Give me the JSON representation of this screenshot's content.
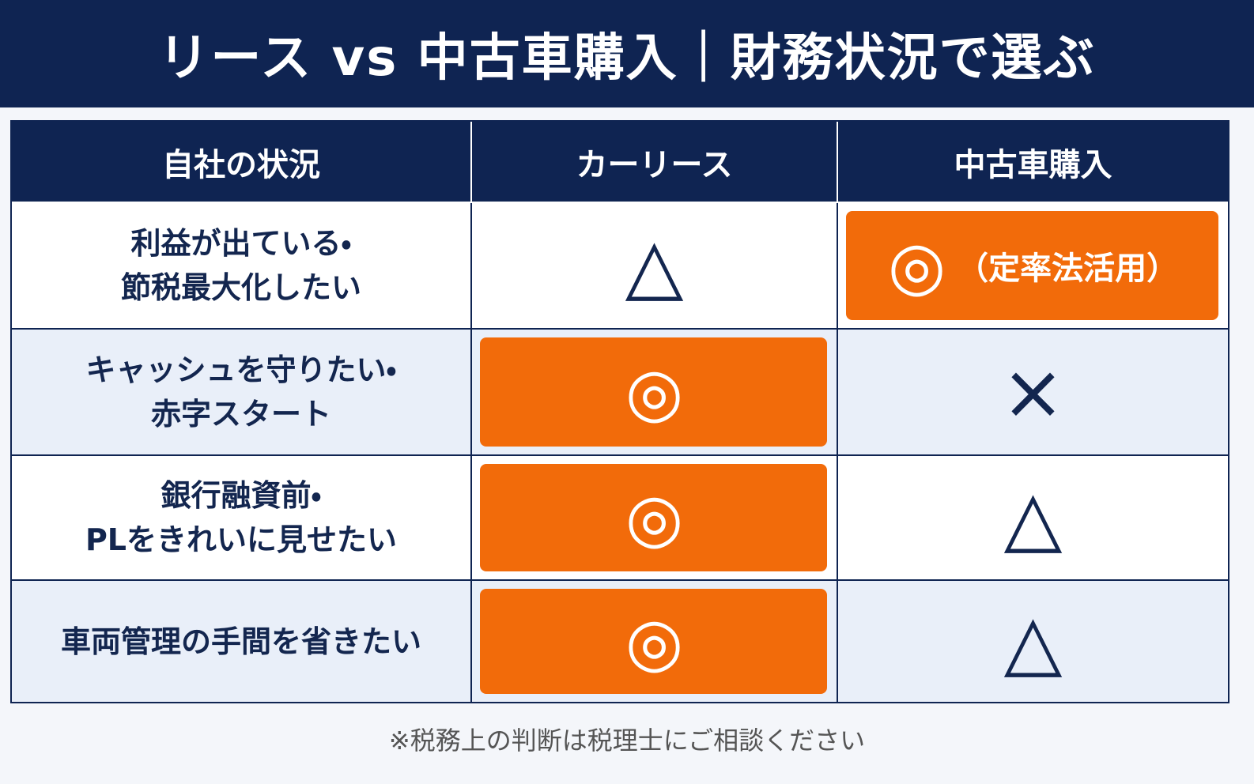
{
  "header": {
    "title": "リース vs 中古車購入｜財務状況で選ぶ"
  },
  "table": {
    "columns": [
      "自社の状況",
      "カーリース",
      "中古車購入"
    ],
    "rows": [
      {
        "situation": [
          "利益が出ている・",
          "節税最大化したい"
        ],
        "lease": {
          "mark": "△",
          "highlight": false
        },
        "used": {
          "mark": "◎",
          "note": "（定率法活用）",
          "highlight": true
        }
      },
      {
        "situation": [
          "キャッシュを守りたい・",
          "赤字スタート"
        ],
        "lease": {
          "mark": "◎",
          "highlight": true
        },
        "used": {
          "mark": "×",
          "highlight": false
        }
      },
      {
        "situation": [
          "銀行融資前・",
          "PLをきれいに見せたい"
        ],
        "lease": {
          "mark": "◎",
          "highlight": true
        },
        "used": {
          "mark": "△",
          "highlight": false
        }
      },
      {
        "situation": [
          "車両管理の手間を省きたい"
        ],
        "lease": {
          "mark": "◎",
          "highlight": true
        },
        "used": {
          "mark": "△",
          "highlight": false
        }
      }
    ]
  },
  "footnote": "※税務上の判断は税理士にご相談ください"
}
